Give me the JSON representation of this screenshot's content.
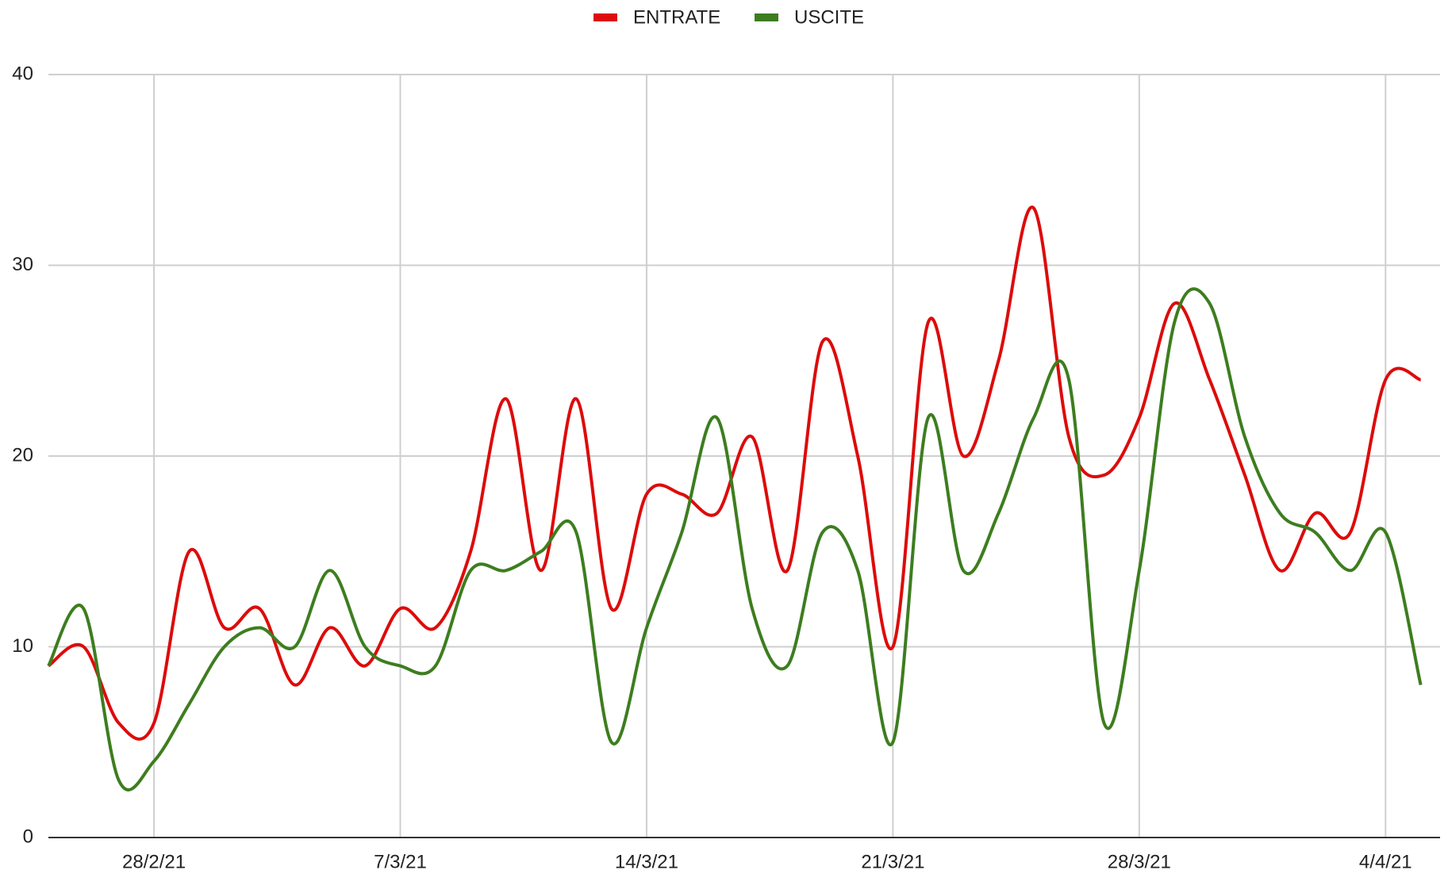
{
  "chart_data": {
    "type": "line",
    "categories": [
      null,
      null,
      null,
      "28/2/21",
      null,
      null,
      null,
      null,
      null,
      null,
      "7/3/21",
      null,
      null,
      null,
      null,
      null,
      null,
      "14/3/21",
      null,
      null,
      null,
      null,
      null,
      null,
      "21/3/21",
      null,
      null,
      null,
      null,
      null,
      null,
      "28/3/21",
      null,
      null,
      null,
      null,
      null,
      null,
      "4/4/21",
      null
    ],
    "series": [
      {
        "name": "ENTRATE",
        "color": "#dd0b0b",
        "values": [
          9,
          10,
          6,
          6,
          15,
          11,
          12,
          8,
          11,
          9,
          12,
          11,
          15,
          23,
          14,
          23,
          12,
          18,
          18,
          17,
          21,
          14,
          26,
          20,
          10,
          27,
          20,
          25,
          33,
          21,
          19,
          22,
          28,
          24,
          19,
          14,
          17,
          16,
          24,
          24
        ]
      },
      {
        "name": "USCITE",
        "color": "#3d7d1f",
        "values": [
          9,
          12,
          3,
          4,
          7,
          10,
          11,
          10,
          14,
          10,
          9,
          9,
          14,
          14,
          15,
          16,
          5,
          11,
          16,
          22,
          12,
          9,
          16,
          14,
          5,
          22,
          14,
          17,
          22,
          24,
          6,
          14,
          27,
          28,
          21,
          17,
          16,
          14,
          16,
          8
        ]
      }
    ],
    "ylim": [
      0,
      40
    ],
    "yticks": [
      0,
      10,
      20,
      30,
      40
    ],
    "grid": true,
    "legend": "top"
  }
}
